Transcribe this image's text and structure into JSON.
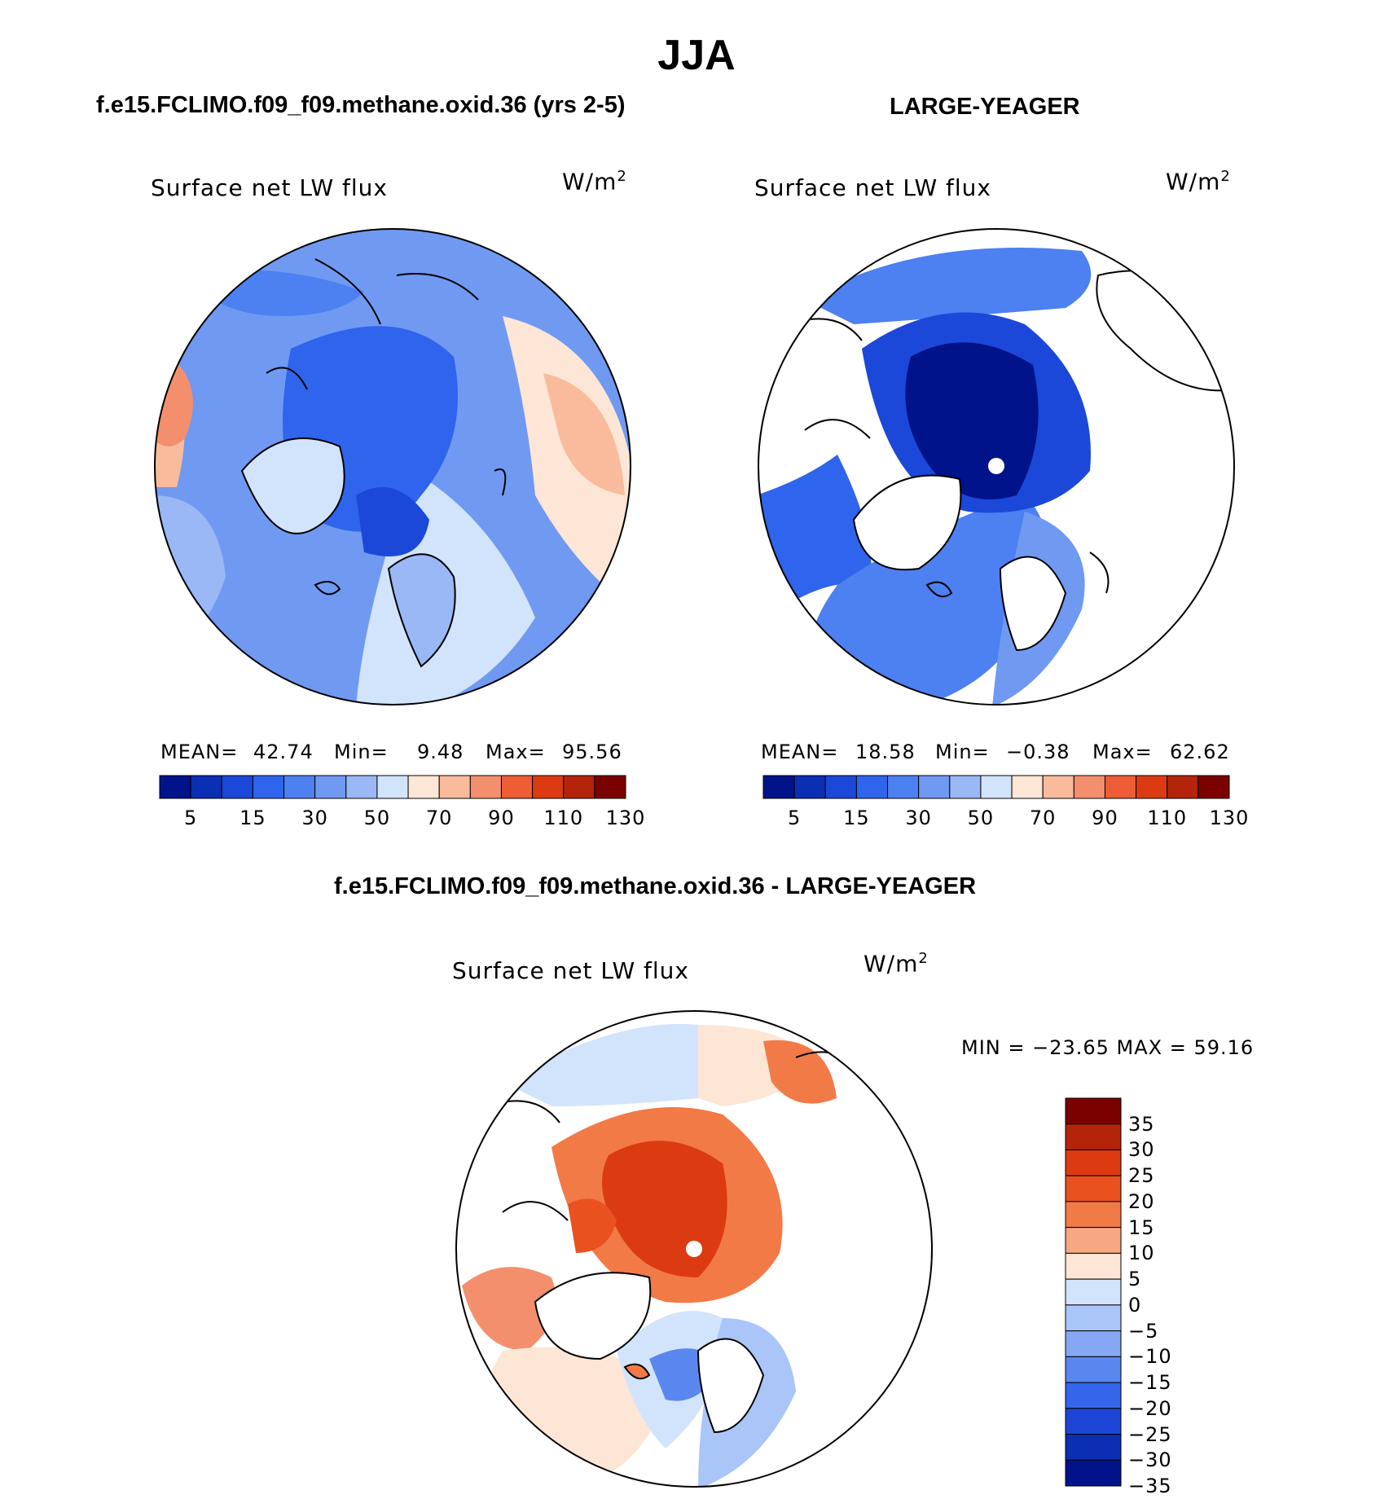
{
  "title": "JJA",
  "colors": {
    "map_palette": [
      "#00138a",
      "#0a2fb3",
      "#1b48d8",
      "#2f64ec",
      "#4d80f0",
      "#7099f2",
      "#9ab7f6",
      "#d2e4fb",
      "#fde6d6",
      "#f9bb9c",
      "#f48f6d",
      "#ee5d36",
      "#dc3b12",
      "#b3240a",
      "#7b0000"
    ],
    "diff_palette_top_to_bottom": [
      "#7b0000",
      "#b3240a",
      "#dc3b12",
      "#e9521f",
      "#f27a47",
      "#f6a882",
      "#fde6d6",
      "#d2e4fb",
      "#aac5f8",
      "#86a8f4",
      "#5a87ef",
      "#3565ea",
      "#1d46d6",
      "#0c2eb2",
      "#00138a"
    ],
    "land": "#ffffff",
    "pole_marker": "#ffffff"
  },
  "panels": {
    "left": {
      "subtitle": "f.e15.FCLIMO.f09_f09.methane.oxid.36 (yrs 2-5)",
      "variable": "Surface net LW flux",
      "units_base": "W/m",
      "units_exp": "2",
      "mean_label": "MEAN=",
      "mean_value": "42.74",
      "min_label": "Min=",
      "min_value": "9.48",
      "max_label": "Max=",
      "max_value": "95.56"
    },
    "right": {
      "subtitle": "LARGE-YEAGER",
      "variable": "Surface net LW flux",
      "units_base": "W/m",
      "units_exp": "2",
      "mean_label": "MEAN=",
      "mean_value": "18.58",
      "min_label": "Min=",
      "min_value": "−0.38",
      "max_label": "Max=",
      "max_value": "62.62"
    },
    "diff": {
      "subtitle": "f.e15.FCLIMO.f09_f09.methane.oxid.36 - LARGE-YEAGER",
      "variable": "Surface net LW flux",
      "units_base": "W/m",
      "units_exp": "2",
      "minmax_text": "MIN = −23.65 MAX =   59.16"
    }
  },
  "chart_data": [
    {
      "type": "heatmap",
      "name": "model",
      "projection": "north-polar-stereographic",
      "title": "f.e15.FCLIMO.f09_f09.methane.oxid.36 (yrs 2-5)",
      "field": "Surface net LW flux",
      "units": "W/m2",
      "stats": {
        "mean": 42.74,
        "min": 9.48,
        "max": 95.56
      },
      "colorbar_ticks": [
        "5",
        "15",
        "30",
        "50",
        "70",
        "90",
        "110",
        "130"
      ]
    },
    {
      "type": "heatmap",
      "name": "observations",
      "projection": "north-polar-stereographic",
      "title": "LARGE-YEAGER",
      "field": "Surface net LW flux",
      "units": "W/m2",
      "stats": {
        "mean": 18.58,
        "min": -0.38,
        "max": 62.62
      },
      "colorbar_ticks": [
        "5",
        "15",
        "30",
        "50",
        "70",
        "90",
        "110",
        "130"
      ]
    },
    {
      "type": "heatmap",
      "name": "difference",
      "projection": "north-polar-stereographic",
      "title": "f.e15.FCLIMO.f09_f09.methane.oxid.36 - LARGE-YEAGER",
      "field": "Surface net LW flux",
      "units": "W/m2",
      "stats": {
        "min": -23.65,
        "max": 59.16
      },
      "colorbar_ticks": [
        "35",
        "30",
        "25",
        "20",
        "15",
        "10",
        "5",
        "0",
        "−5",
        "−10",
        "−15",
        "−20",
        "−25",
        "−30",
        "−35"
      ]
    }
  ]
}
